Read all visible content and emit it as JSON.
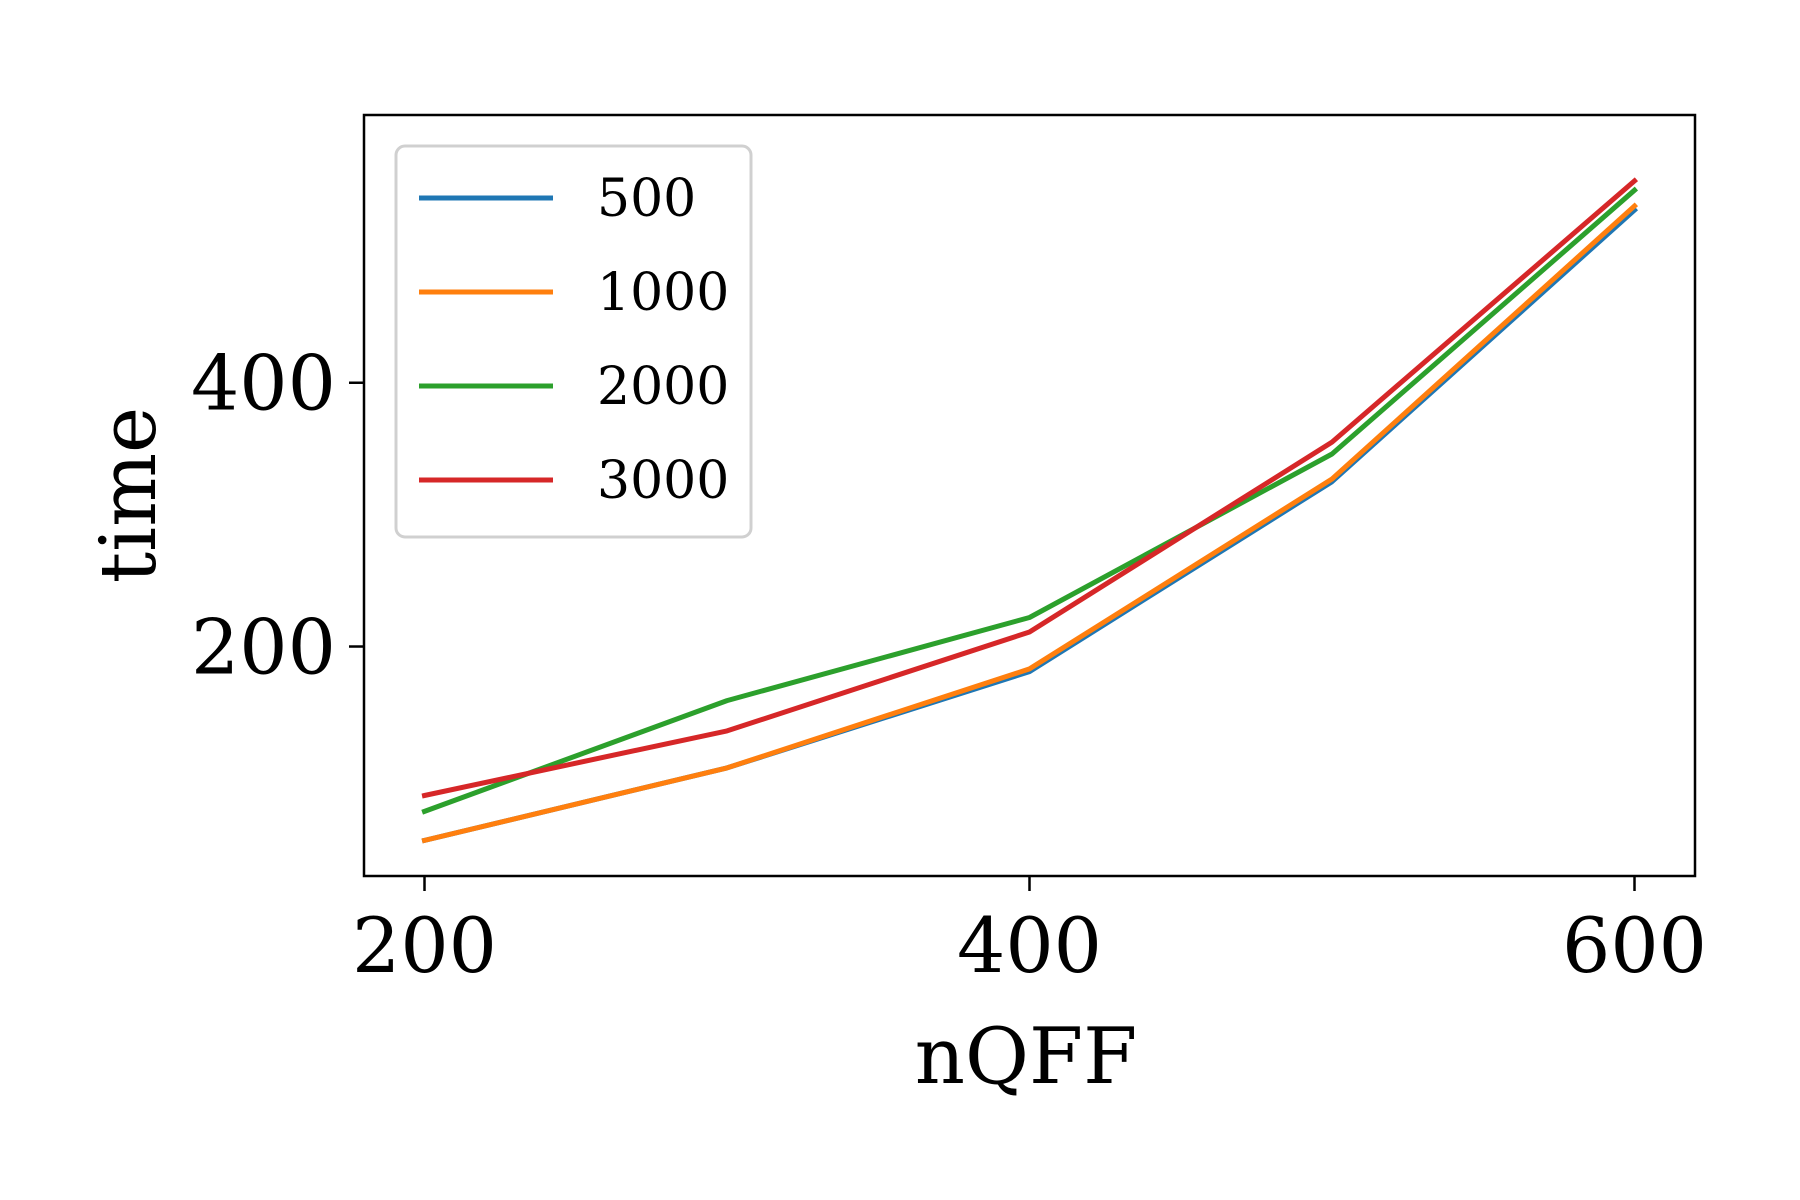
{
  "chart_data": {
    "type": "line",
    "title": "",
    "xlabel": "nQFF",
    "ylabel": "time",
    "xlim": [
      180,
      620
    ],
    "ylim": [
      26,
      603
    ],
    "x_ticks": [
      200,
      400,
      600
    ],
    "y_ticks": [
      200,
      400
    ],
    "x_tick_labels": [
      "200",
      "400",
      "600"
    ],
    "y_tick_labels": [
      "200",
      "400"
    ],
    "grid": false,
    "legend_position": "top-left",
    "x": [
      200,
      300,
      400,
      500,
      600
    ],
    "series": [
      {
        "name": "500",
        "color": "#1f77b4",
        "values": [
          53,
          108,
          181,
          325,
          531
        ]
      },
      {
        "name": "1000",
        "color": "#ff7f0e",
        "values": [
          53,
          108,
          183,
          327,
          534
        ]
      },
      {
        "name": "2000",
        "color": "#2ca02c",
        "values": [
          75,
          159,
          222,
          346,
          546
        ]
      },
      {
        "name": "3000",
        "color": "#d62728",
        "values": [
          87,
          136,
          211,
          355,
          553
        ]
      }
    ]
  }
}
